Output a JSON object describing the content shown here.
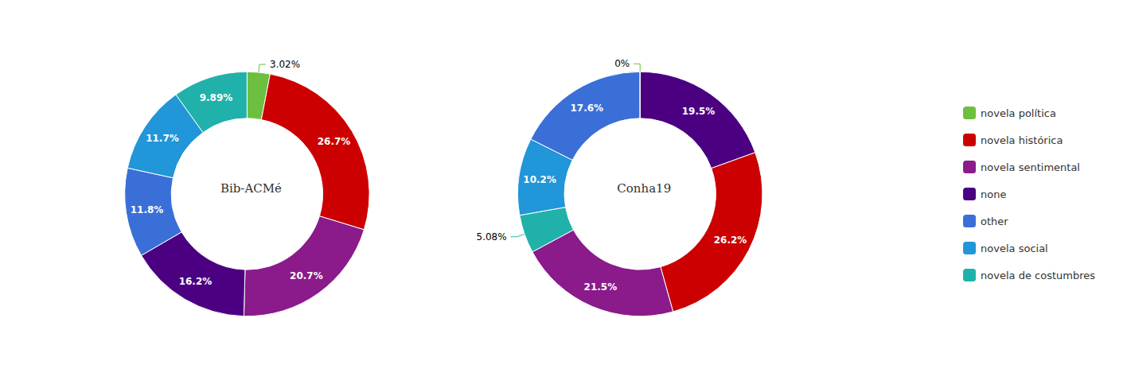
{
  "chart_data": [
    {
      "type": "pie",
      "title": "Bib-ACMé",
      "categories": [
        "novela política",
        "novela histórica",
        "novela sentimental",
        "none",
        "other",
        "novela social",
        "novela de costumbres"
      ],
      "values": [
        3.02,
        26.7,
        20.7,
        16.2,
        11.8,
        11.7,
        9.89
      ],
      "value_labels": [
        "3.02%",
        "26.7%",
        "20.7%",
        "16.2%",
        "11.8%",
        "11.7%",
        "9.89%"
      ],
      "colors": [
        "#6dbf3f",
        "#cc0000",
        "#8b1a8b",
        "#4b0082",
        "#3a6fd8",
        "#2196d8",
        "#20b2aa"
      ],
      "data_labels": true,
      "legend": "right"
    },
    {
      "type": "pie",
      "title": "Conha19",
      "categories": [
        "none",
        "novela histórica",
        "novela sentimental",
        "novela de costumbres",
        "novela social",
        "other",
        "novela política"
      ],
      "values": [
        19.5,
        26.2,
        21.5,
        5.08,
        10.2,
        17.6,
        0.01
      ],
      "value_labels": [
        "19.5%",
        "26.2%",
        "21.5%",
        "5.08%",
        "10.2%",
        "17.6%",
        "0%"
      ],
      "colors": [
        "#4b0082",
        "#cc0000",
        "#8b1a8b",
        "#20b2aa",
        "#2196d8",
        "#3a6fd8",
        "#6dbf3f"
      ],
      "data_labels": true,
      "legend": "right"
    }
  ]
}
